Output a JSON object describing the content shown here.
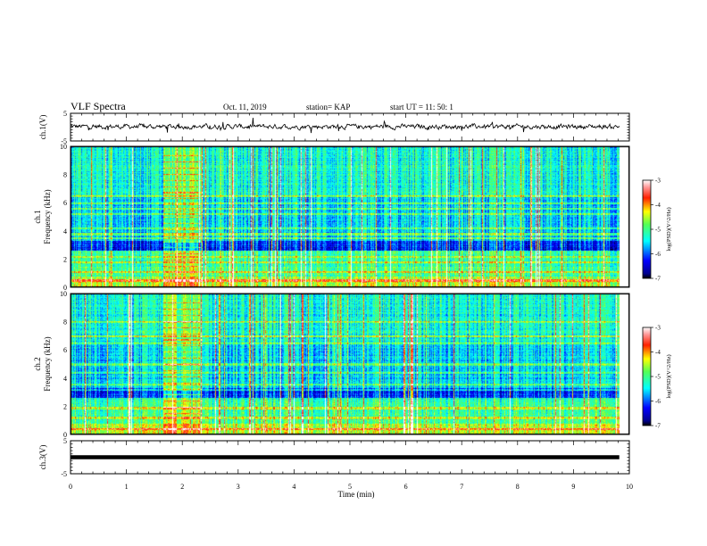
{
  "header": {
    "title": "VLF Spectra",
    "date": "Oct. 11, 2019",
    "station": "station= KAP",
    "start_ut": "start  UT =   11: 50: 1"
  },
  "chart_data": [
    {
      "type": "line",
      "panel": "ch1-waveform",
      "ylabel": "ch.1(V)",
      "ylim": [
        -5,
        5
      ],
      "yticks": [
        "5",
        "-5"
      ],
      "xlim": [
        0,
        10
      ],
      "series": [
        {
          "values_note_free": true,
          "noise_amplitude_v": 1.6,
          "mean_v": 0.2,
          "extent_min": 9.82
        }
      ]
    },
    {
      "type": "heatmap",
      "panel": "ch1-spectrogram",
      "ylabel": "ch.1\nFrequency (kHz)",
      "ylim": [
        0,
        10
      ],
      "yticks": [
        "0",
        "2",
        "4",
        "6",
        "8",
        "10"
      ],
      "xlim": [
        0,
        10
      ],
      "extent_min": 9.82,
      "colorbar": {
        "label": "log(PSD)(V^2/Hz)",
        "range": [
          -7,
          -3
        ],
        "ticks": [
          "-3",
          "-4",
          "-5",
          "-6",
          "-7"
        ]
      },
      "enhanced_interval_min": [
        1.65,
        2.35
      ],
      "bands_khz": [
        0.5,
        1.1,
        1.8,
        2.2,
        3.5,
        3.8,
        4.2,
        5.2,
        5.6,
        6.0,
        6.5
      ]
    },
    {
      "type": "heatmap",
      "panel": "ch2-spectrogram",
      "ylabel": "ch.2\nFrequency (kHz)",
      "ylim": [
        0,
        10
      ],
      "yticks": [
        "0",
        "2",
        "4",
        "6",
        "8",
        "10"
      ],
      "xlim": [
        0,
        10
      ],
      "extent_min": 9.82,
      "colorbar": {
        "label": "log(PSD)(V^2/Hz)",
        "range": [
          -7,
          -3
        ],
        "ticks": [
          "-3",
          "-4",
          "-5",
          "-6",
          "-7"
        ]
      },
      "enhanced_interval_min": [
        1.65,
        2.35
      ],
      "bands_khz": [
        0.4,
        1.2,
        1.9,
        3.2,
        3.6,
        4.4,
        5.0,
        6.5,
        7.0,
        8.0
      ]
    },
    {
      "type": "line",
      "panel": "ch3-waveform",
      "ylabel": "ch.3(V)",
      "ylim": [
        -5,
        5
      ],
      "yticks": [
        "5",
        "-5"
      ],
      "xlim": [
        0,
        10
      ],
      "series": [
        {
          "constant_v": 0.0,
          "extent_min": 9.82
        }
      ]
    }
  ],
  "xaxis": {
    "label": "Time  (min)",
    "ticks": [
      "0",
      "1",
      "2",
      "3",
      "4",
      "5",
      "6",
      "7",
      "8",
      "9",
      "10"
    ]
  }
}
